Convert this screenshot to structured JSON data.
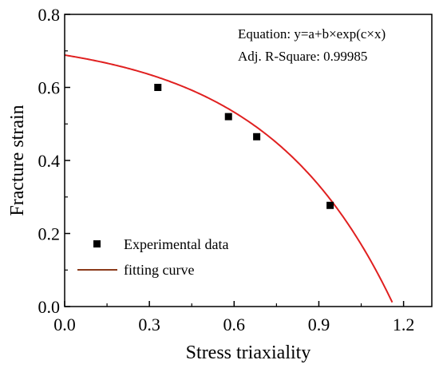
{
  "chart_data": {
    "type": "scatter",
    "title": "",
    "xlabel": "Stress triaxiality",
    "ylabel": "Fracture strain",
    "xlim": [
      0.0,
      1.3
    ],
    "ylim": [
      0.0,
      0.8
    ],
    "x_ticks": [
      0.0,
      0.3,
      0.6,
      0.9,
      1.2
    ],
    "x_tick_labels": [
      "0.0",
      "0.3",
      "0.6",
      "0.9",
      "1.2"
    ],
    "y_ticks": [
      0.0,
      0.2,
      0.4,
      0.6,
      0.8
    ],
    "y_tick_labels": [
      "0.0",
      "0.2",
      "0.4",
      "0.6",
      "0.8"
    ],
    "grid": false,
    "legend_position": "bottom-left",
    "series": [
      {
        "name": "Experimental data",
        "kind": "scatter",
        "marker": "square",
        "color": "#000000",
        "x": [
          0.33,
          0.58,
          0.68,
          0.94
        ],
        "y": [
          0.6,
          0.52,
          0.465,
          0.277
        ]
      },
      {
        "name": "fitting curve",
        "kind": "line",
        "model": "exponential",
        "a": 0.745,
        "b": -0.0565,
        "c": 2.21,
        "x_range": [
          0.0,
          1.16
        ],
        "color": "#e02020",
        "legend_color": "#8b3a1a"
      }
    ],
    "annotations": [
      "Equation: y=a+b×exp(c×x)",
      "Adj. R-Square: 0.99985"
    ]
  }
}
